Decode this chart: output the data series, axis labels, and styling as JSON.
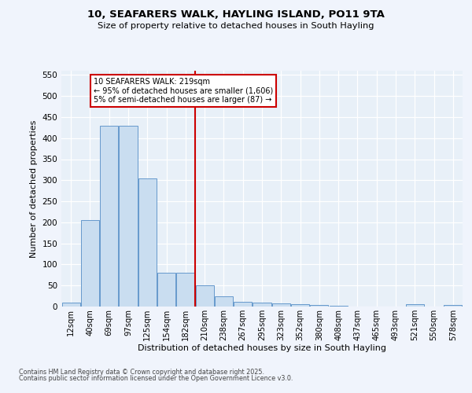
{
  "title_line1": "10, SEAFARERS WALK, HAYLING ISLAND, PO11 9TA",
  "title_line2": "Size of property relative to detached houses in South Hayling",
  "xlabel": "Distribution of detached houses by size in South Hayling",
  "ylabel": "Number of detached properties",
  "categories": [
    "12sqm",
    "40sqm",
    "69sqm",
    "97sqm",
    "125sqm",
    "154sqm",
    "182sqm",
    "210sqm",
    "238sqm",
    "267sqm",
    "295sqm",
    "323sqm",
    "352sqm",
    "380sqm",
    "408sqm",
    "437sqm",
    "465sqm",
    "493sqm",
    "521sqm",
    "550sqm",
    "578sqm"
  ],
  "values": [
    10,
    205,
    430,
    430,
    305,
    80,
    80,
    50,
    25,
    12,
    10,
    8,
    5,
    4,
    2,
    0,
    0,
    0,
    5,
    0,
    4
  ],
  "bar_color": "#c9ddf0",
  "bar_edge_color": "#6699cc",
  "bg_color": "#e8f0f8",
  "fig_color": "#f0f4fc",
  "grid_color": "#ffffff",
  "vline_color": "#cc0000",
  "annotation_box_edgecolor": "#cc0000",
  "ylim": [
    0,
    560
  ],
  "yticks": [
    0,
    50,
    100,
    150,
    200,
    250,
    300,
    350,
    400,
    450,
    500,
    550
  ],
  "footnote_line1": "Contains HM Land Registry data © Crown copyright and database right 2025.",
  "footnote_line2": "Contains public sector information licensed under the Open Government Licence v3.0."
}
